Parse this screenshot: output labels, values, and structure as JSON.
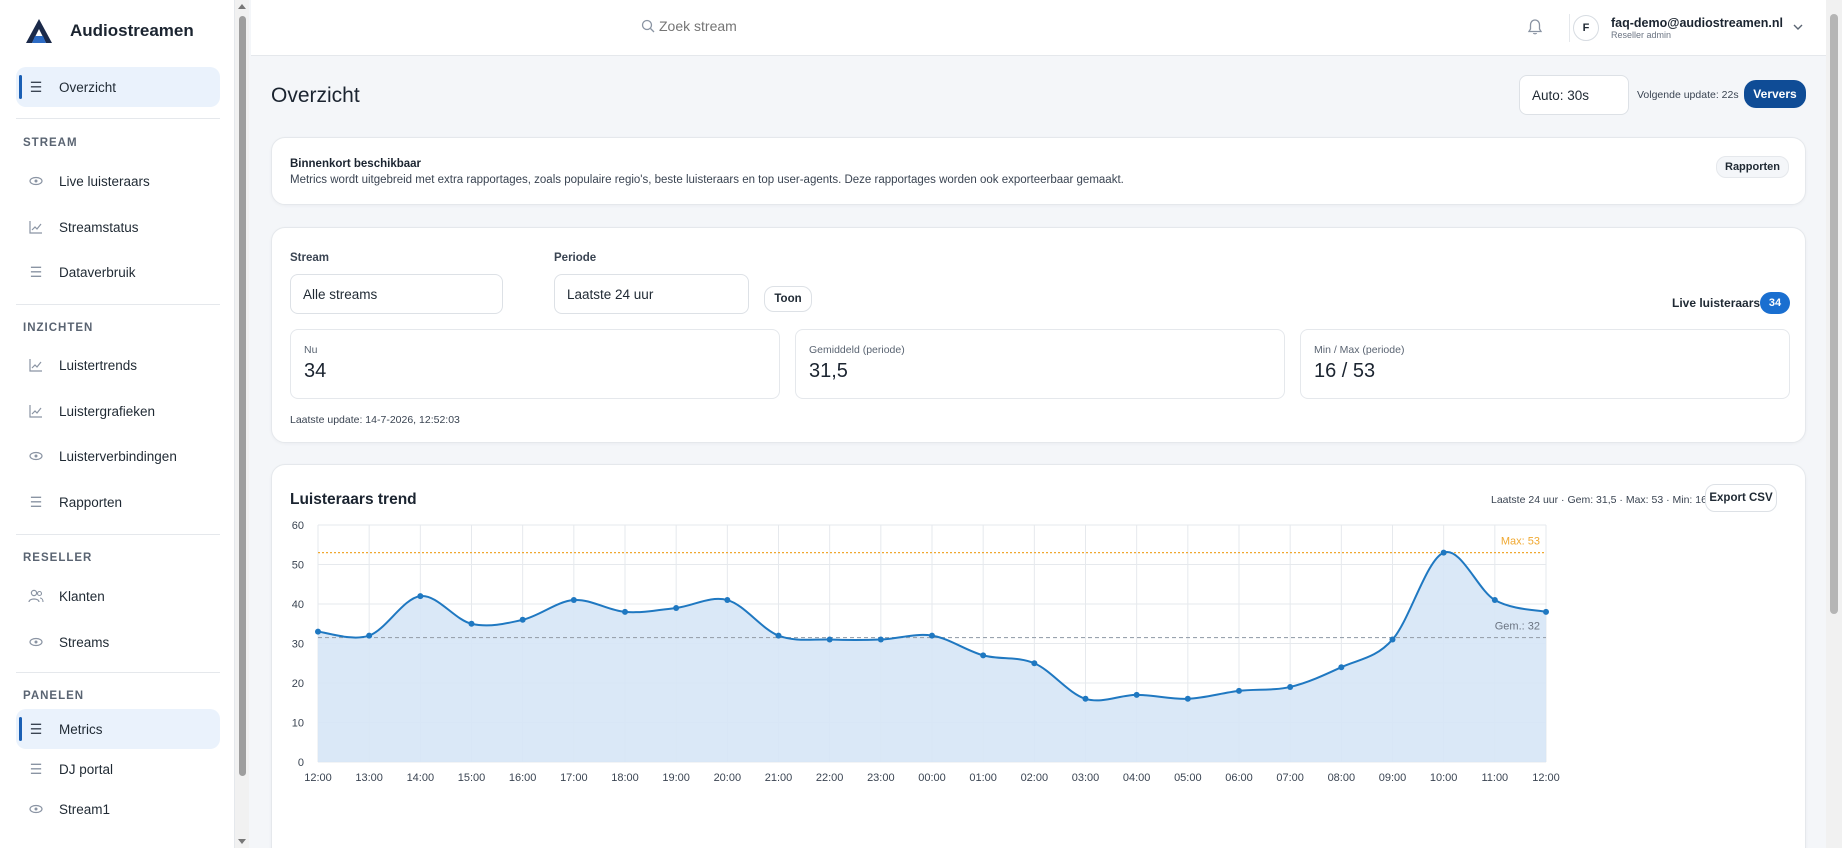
{
  "brand": {
    "name": "Audiostreamen"
  },
  "sidebar": {
    "top": {
      "label": "Overzicht",
      "icon": "menu-icon"
    },
    "sections": [
      {
        "title": "STREAM",
        "items": [
          {
            "label": "Live luisteraars",
            "icon": "eye-icon"
          },
          {
            "label": "Streamstatus",
            "icon": "chart-line-icon"
          },
          {
            "label": "Dataverbruik",
            "icon": "menu-icon"
          }
        ]
      },
      {
        "title": "INZICHTEN",
        "items": [
          {
            "label": "Luistertrends",
            "icon": "chart-line-icon"
          },
          {
            "label": "Luistergrafieken",
            "icon": "chart-line-icon"
          },
          {
            "label": "Luisterverbindingen",
            "icon": "eye-icon"
          },
          {
            "label": "Rapporten",
            "icon": "menu-icon"
          }
        ]
      },
      {
        "title": "RESELLER",
        "items": [
          {
            "label": "Klanten",
            "icon": "users-icon"
          },
          {
            "label": "Streams",
            "icon": "eye-icon"
          }
        ]
      },
      {
        "title": "PANELEN",
        "items": [
          {
            "label": "Metrics",
            "icon": "menu-icon",
            "active": true
          },
          {
            "label": "DJ portal",
            "icon": "menu-icon"
          },
          {
            "label": "Stream1",
            "icon": "eye-icon"
          }
        ]
      }
    ]
  },
  "header": {
    "search_placeholder": "Zoek stream",
    "avatar_initial": "F",
    "user_email": "faq-demo@audiostreamen.nl",
    "user_role": "Reseller admin"
  },
  "page": {
    "title": "Overzicht",
    "auto_refresh": "Auto: 30s",
    "next_update": "Volgende update: 22s",
    "refresh_label": "Ververs"
  },
  "notice": {
    "title": "Binnenkort beschikbaar",
    "text": "Metrics wordt uitgebreid met extra rapportages, zoals populaire regio's, beste luisteraars en top user-agents. Deze rapportages worden ook exporteerbaar gemaakt.",
    "button": "Rapporten"
  },
  "filters": {
    "stream_label": "Stream",
    "stream_value": "Alle streams",
    "period_label": "Periode",
    "period_value": "Laatste 24 uur",
    "show_label": "Toon",
    "live_label": "Live luisteraars",
    "live_count": "34"
  },
  "stats": [
    {
      "label": "Nu",
      "value": "34"
    },
    {
      "label": "Gemiddeld (periode)",
      "value": "31,5"
    },
    {
      "label": "Min / Max (periode)",
      "value": "16 / 53"
    }
  ],
  "last_update": "Laatste update: 14-7-2026, 12:52:03",
  "chart_panel": {
    "title": "Luisteraars trend",
    "meta": "Laatste 24 uur · Gem: 31,5 · Max: 53 · Min: 16",
    "export_label": "Export CSV"
  },
  "colors": {
    "accent": "#1a6fd0",
    "primary_button": "#0f4c96",
    "line": "#1f78c1",
    "fill": "#d6e6f6",
    "max_line": "#f0a830",
    "avg_line": "#9aa3ae"
  },
  "chart_data": {
    "type": "area",
    "title": "",
    "xlabel": "",
    "ylabel": "",
    "categories": [
      "12:00",
      "13:00",
      "14:00",
      "15:00",
      "16:00",
      "17:00",
      "18:00",
      "19:00",
      "20:00",
      "21:00",
      "22:00",
      "23:00",
      "00:00",
      "01:00",
      "02:00",
      "03:00",
      "04:00",
      "05:00",
      "06:00",
      "07:00",
      "08:00",
      "09:00",
      "10:00",
      "11:00",
      "12:00"
    ],
    "values": [
      33,
      32,
      42,
      35,
      36,
      41,
      38,
      39,
      41,
      32,
      31,
      31,
      32,
      27,
      25,
      16,
      17,
      16,
      18,
      19,
      24,
      31,
      53,
      41,
      38
    ],
    "ylim": [
      0,
      60
    ],
    "yticks": [
      0,
      10,
      20,
      30,
      40,
      50,
      60
    ],
    "grid": true,
    "reference_lines": [
      {
        "label": "Max: 53",
        "value": 53
      },
      {
        "label": "Gem.: 32",
        "value": 31.5
      }
    ]
  }
}
